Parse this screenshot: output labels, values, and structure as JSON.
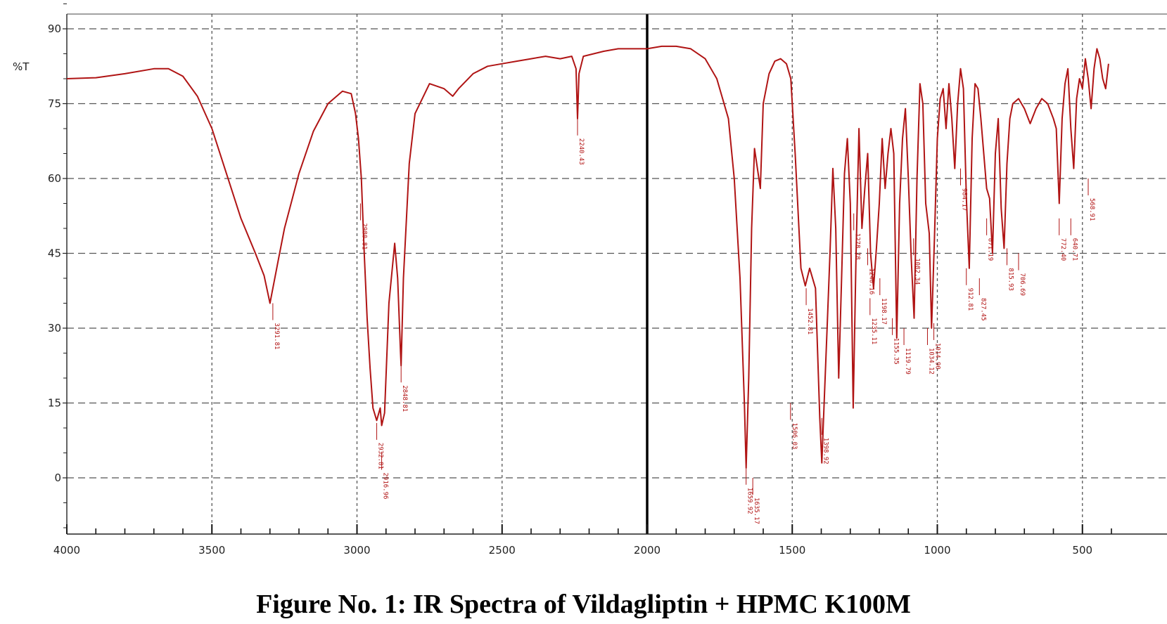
{
  "caption": "Figure No. 1: IR Spectra of Vildagliptin + HPMC K100M",
  "chart_data": {
    "type": "line",
    "title": "",
    "xlabel": "",
    "ylabel": "%T",
    "x_reversed": true,
    "xlim": [
      4000,
      400
    ],
    "ylim": [
      -15,
      97
    ],
    "grid": true,
    "x_ticks": [
      4000,
      3500,
      3000,
      2500,
      2000,
      1500,
      1000,
      500
    ],
    "y_ticks": [
      90,
      75,
      60,
      45,
      30,
      15,
      0
    ],
    "colors": {
      "spectrum": "#b01414",
      "grid": "#555555",
      "divider": "#000000"
    },
    "series": [
      {
        "x": [
          4000,
          3900,
          3800,
          3700,
          3650,
          3600,
          3550,
          3500,
          3450,
          3400,
          3350,
          3320,
          3300,
          3290,
          3270,
          3250,
          3200,
          3150,
          3100,
          3050,
          3020,
          3005,
          2995,
          2985,
          2975,
          2965,
          2955,
          2945,
          2932,
          2920,
          2915,
          2905,
          2890,
          2870,
          2860,
          2850,
          2848,
          2840,
          2820,
          2800,
          2750,
          2700,
          2670,
          2650,
          2600,
          2550,
          2500,
          2450,
          2400,
          2350,
          2300,
          2260,
          2245,
          2240,
          2235,
          2220,
          2150,
          2100,
          2050,
          2000,
          1950,
          1900,
          1850,
          1800,
          1760,
          1720,
          1700,
          1680,
          1665,
          1659,
          1650,
          1640,
          1630,
          1610,
          1600,
          1580,
          1560,
          1540,
          1520,
          1505,
          1490,
          1470,
          1455,
          1440,
          1420,
          1405,
          1398,
          1390,
          1380,
          1370,
          1360,
          1350,
          1340,
          1330,
          1320,
          1310,
          1300,
          1290,
          1280,
          1270,
          1260,
          1250,
          1240,
          1230,
          1220,
          1210,
          1200,
          1190,
          1180,
          1170,
          1160,
          1150,
          1140,
          1130,
          1120,
          1110,
          1100,
          1090,
          1080,
          1070,
          1060,
          1050,
          1040,
          1034,
          1028,
          1020,
          1010,
          1000,
          990,
          980,
          970,
          960,
          950,
          940,
          930,
          920,
          910,
          900,
          890,
          880,
          870,
          860,
          850,
          840,
          830,
          820,
          810,
          800,
          790,
          780,
          770,
          760,
          750,
          740,
          720,
          700,
          680,
          660,
          640,
          620,
          600,
          590,
          580,
          570,
          560,
          550,
          540,
          530,
          520,
          510,
          500,
          490,
          480,
          470,
          460,
          450,
          440,
          430,
          420,
          410
        ],
        "y": [
          80,
          80.2,
          81,
          82,
          82,
          80.5,
          76.5,
          70,
          61,
          52,
          45,
          40.5,
          35,
          38,
          44,
          50,
          61,
          69.5,
          75,
          77.5,
          77,
          73,
          68,
          60,
          45,
          32,
          22,
          14,
          11.5,
          14,
          10.5,
          13,
          35,
          47,
          40,
          25,
          22.5,
          40,
          63,
          73,
          79,
          78,
          76.5,
          78,
          81,
          82.5,
          83,
          83.5,
          84,
          84.5,
          84,
          84.5,
          82,
          72,
          81,
          84.5,
          85.5,
          86,
          86,
          86,
          86.5,
          86.5,
          86,
          84,
          80,
          72,
          60,
          40,
          15,
          2,
          20,
          50,
          66,
          58,
          75,
          81,
          83.5,
          84,
          83,
          80,
          65,
          42,
          38.5,
          42,
          38,
          12,
          3,
          15,
          30,
          45,
          62,
          50,
          20,
          40,
          61,
          68,
          55,
          14,
          45,
          70,
          50,
          58,
          65,
          45,
          38,
          46,
          55,
          68,
          58,
          65,
          70,
          65,
          28,
          55,
          68,
          74,
          60,
          44,
          32,
          60,
          79,
          75,
          55,
          52,
          49,
          30,
          48,
          68,
          76,
          78,
          70,
          79,
          72,
          62,
          75,
          82,
          78,
          56,
          42,
          68,
          79,
          78,
          72,
          65,
          58,
          56,
          45,
          65,
          72,
          54,
          46,
          63,
          72,
          75,
          76,
          74,
          71,
          74,
          76,
          75,
          72,
          70,
          55,
          72,
          79,
          82,
          70,
          62,
          76,
          80,
          78,
          84,
          80,
          74,
          82,
          86,
          84,
          80,
          78,
          83
        ]
      }
    ],
    "peak_labels": [
      {
        "x": 3290,
        "y": 35,
        "text": "3291.81"
      },
      {
        "x": 2988,
        "y": 55,
        "text": "2980.81"
      },
      {
        "x": 2932,
        "y": 11,
        "text": "2932.81"
      },
      {
        "x": 2915,
        "y": 5,
        "text": "2916.96"
      },
      {
        "x": 2848,
        "y": 22.5,
        "text": "2848.81"
      },
      {
        "x": 2240,
        "y": 72,
        "text": "2240.43"
      },
      {
        "x": 1659,
        "y": 2,
        "text": "1659.92"
      },
      {
        "x": 1636,
        "y": 0,
        "text": "1635.17"
      },
      {
        "x": 1506,
        "y": 15,
        "text": "1506.03"
      },
      {
        "x": 1398,
        "y": 12,
        "text": "1398.92"
      },
      {
        "x": 1452,
        "y": 38,
        "text": "1452.81"
      },
      {
        "x": 1288,
        "y": 53,
        "text": "1278.78"
      },
      {
        "x": 1240,
        "y": 46,
        "text": "1240.16"
      },
      {
        "x": 1198,
        "y": 40,
        "text": "1198.17"
      },
      {
        "x": 1232,
        "y": 36,
        "text": "1235.11"
      },
      {
        "x": 1155,
        "y": 32,
        "text": "1155.35"
      },
      {
        "x": 1115,
        "y": 30,
        "text": "1119.79"
      },
      {
        "x": 1082,
        "y": 48,
        "text": "1082.34"
      },
      {
        "x": 1034,
        "y": 30,
        "text": "1034.12"
      },
      {
        "x": 1012,
        "y": 31,
        "text": "1014.90"
      },
      {
        "x": 920,
        "y": 62,
        "text": "984.17"
      },
      {
        "x": 830,
        "y": 52,
        "text": "871.19"
      },
      {
        "x": 900,
        "y": 42,
        "text": "912.81"
      },
      {
        "x": 855,
        "y": 40,
        "text": "827.45"
      },
      {
        "x": 760,
        "y": 46,
        "text": "815.93"
      },
      {
        "x": 720,
        "y": 45,
        "text": "706.69"
      },
      {
        "x": 580,
        "y": 52,
        "text": "772.40"
      },
      {
        "x": 540,
        "y": 52,
        "text": "640.71"
      },
      {
        "x": 480,
        "y": 60,
        "text": "568.91"
      }
    ]
  }
}
